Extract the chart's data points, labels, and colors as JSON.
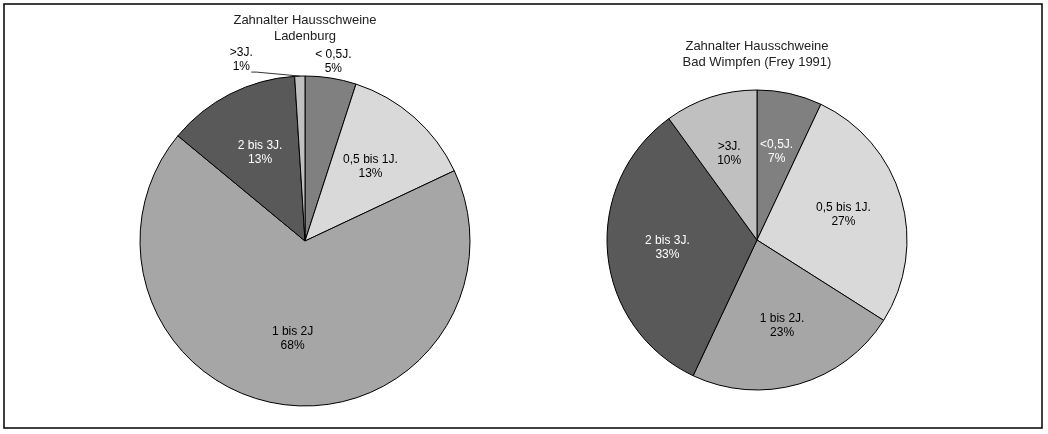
{
  "chart_data": [
    {
      "type": "pie",
      "title": "Zahnalter Hausschweine",
      "subtitle": "Ladenburg",
      "categories": [
        "< 0,5J.",
        "0,5 bis 1J.",
        "1 bis 2J",
        "2 bis 3J.",
        ">3J."
      ],
      "values": [
        5,
        13,
        68,
        13,
        1
      ],
      "value_labels": [
        "5%",
        "13%",
        "68%",
        "13%",
        "1%"
      ],
      "colors": [
        "#808080",
        "#d9d9d9",
        "#a6a6a6",
        "#595959",
        "#c0c0c0"
      ]
    },
    {
      "type": "pie",
      "title": "Zahnalter Hausschweine",
      "subtitle": "Bad Wimpfen (Frey 1991)",
      "categories": [
        "<0,5J.",
        "0,5 bis 1J.",
        "1 bis 2J.",
        "2 bis 3J.",
        ">3J."
      ],
      "values": [
        7,
        27,
        23,
        33,
        10
      ],
      "value_labels": [
        "7%",
        "27%",
        "23%",
        "33%",
        "10%"
      ],
      "colors": [
        "#808080",
        "#d9d9d9",
        "#a6a6a6",
        "#595959",
        "#c0c0c0"
      ]
    }
  ]
}
